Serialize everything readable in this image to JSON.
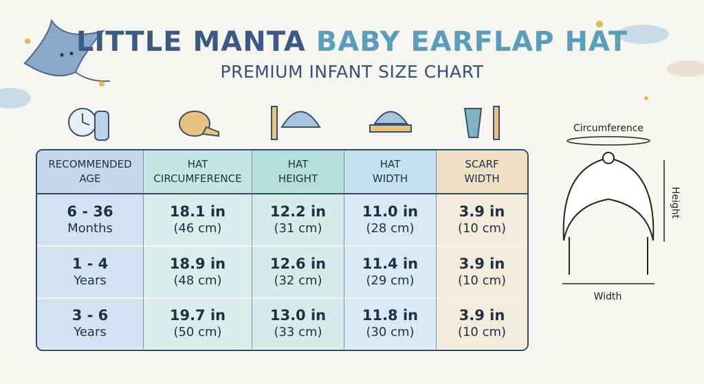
{
  "header": {
    "title_part1": "LITTLE MANTA",
    "title_part2": "BABY EARFLAP HAT",
    "subtitle": "PREMIUM INFANT SIZE CHART"
  },
  "table": {
    "headers": [
      [
        "RECOMMENDED",
        "AGE"
      ],
      [
        "HAT",
        "CIRCUMFERENCE"
      ],
      [
        "HAT",
        "HEIGHT"
      ],
      [
        "HAT",
        "WIDTH"
      ],
      [
        "SCARF",
        "WIDTH"
      ]
    ],
    "rows": [
      [
        [
          "6 - 36",
          "Months"
        ],
        [
          "18.1 in",
          "(46 cm)"
        ],
        [
          "12.2 in",
          "(31 cm)"
        ],
        [
          "11.0 in",
          "(28 cm)"
        ],
        [
          "3.9 in",
          "(10 cm)"
        ]
      ],
      [
        [
          "1 - 4",
          "Years"
        ],
        [
          "18.9 in",
          "(48 cm)"
        ],
        [
          "12.6 in",
          "(32 cm)"
        ],
        [
          "11.4 in",
          "(29 cm)"
        ],
        [
          "3.9 in",
          "(10 cm)"
        ]
      ],
      [
        [
          "3 - 6",
          "Years"
        ],
        [
          "19.7 in",
          "(50 cm)"
        ],
        [
          "13.0 in",
          "(33 cm)"
        ],
        [
          "11.8 in",
          "(30 cm)"
        ],
        [
          "3.9 in",
          "(10 cm)"
        ]
      ]
    ]
  },
  "diagram": {
    "circumference": "Circumference",
    "height": "Height",
    "width": "Width"
  }
}
